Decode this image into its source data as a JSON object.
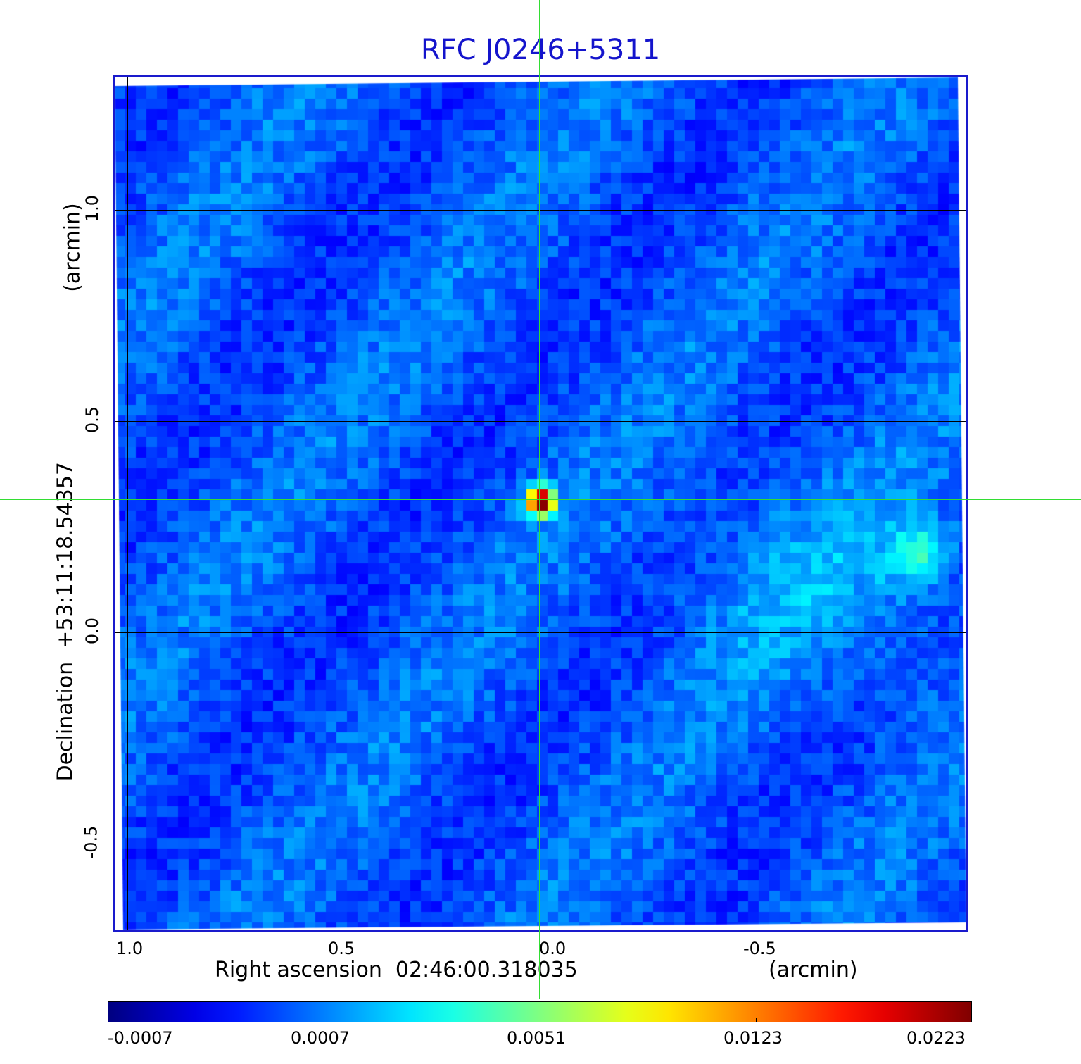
{
  "title": "RFC J0246+5311",
  "colors": {
    "title": "#1414cc",
    "frame": "#1a1acc",
    "crosshair": "#33dd33",
    "grid": "#000000"
  },
  "x_axis": {
    "label": "Right ascension  02:46:00.318035",
    "unit": "(arcmin)",
    "ticks": [
      "1.0",
      "0.5",
      "0.0",
      "-0.5"
    ],
    "range_arcmin": [
      1.03,
      -0.99
    ]
  },
  "y_axis": {
    "label": "Declination  +53:11:18.54357",
    "unit": "(arcmin)",
    "ticks": [
      "1.0",
      "0.5",
      "0.0",
      "-0.5"
    ],
    "range_arcmin": [
      -0.71,
      1.32
    ]
  },
  "colorbar": {
    "colormap": "jet",
    "tick_labels": [
      "-0.0007",
      "0.0007",
      "0.0051",
      "0.0123",
      "0.0223"
    ]
  },
  "image": {
    "description_sources": [
      {
        "ra_arcmin": 0.02,
        "dec_arcmin": 0.31,
        "kind": "compact bright core"
      },
      {
        "ra_arcmin": -0.88,
        "dec_arcmin": 0.18,
        "kind": "faint blob"
      }
    ]
  }
}
